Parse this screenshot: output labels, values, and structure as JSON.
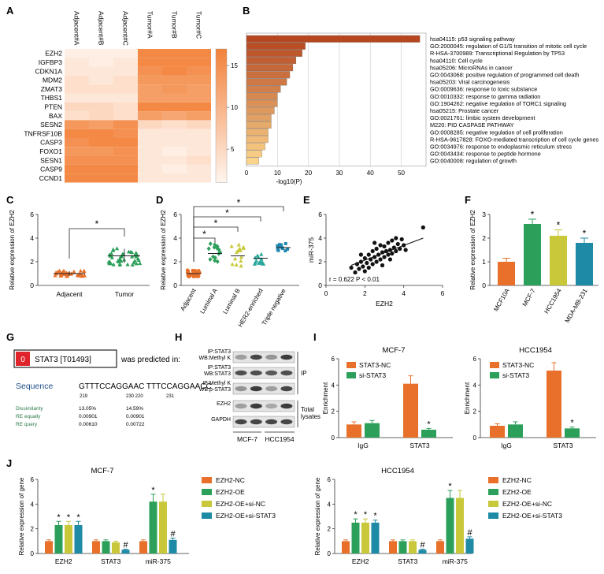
{
  "panels": {
    "A": {
      "label": "A",
      "columns": [
        "Adjacent#A",
        "Adjacent#B",
        "Adjacent#C",
        "Tumor#A",
        "Tumor#B",
        "Tumor#C"
      ],
      "rows": [
        "EZH2",
        "IGFBP3",
        "CDKN1A",
        "MDM2",
        "ZMAT3",
        "THBS1",
        "PTEN",
        "BAX",
        "SESN2",
        "TNFRSF10B",
        "CASP3",
        "FOXO1",
        "SESN1",
        "CASP9",
        "CCND1"
      ],
      "values": [
        [
          2,
          2,
          2,
          16,
          16,
          16
        ],
        [
          3,
          2,
          3,
          16,
          16,
          16
        ],
        [
          3,
          3,
          3,
          15,
          16,
          15
        ],
        [
          4,
          3,
          4,
          14,
          14,
          14
        ],
        [
          4,
          4,
          4,
          13,
          14,
          13
        ],
        [
          3,
          3,
          3,
          13,
          13,
          13
        ],
        [
          5,
          5,
          4,
          16,
          16,
          16
        ],
        [
          4,
          5,
          4,
          13,
          12,
          13
        ],
        [
          14,
          13,
          15,
          5,
          4,
          5
        ],
        [
          16,
          16,
          15,
          3,
          3,
          3
        ],
        [
          15,
          16,
          16,
          3,
          3,
          3
        ],
        [
          14,
          14,
          15,
          3,
          2,
          3
        ],
        [
          15,
          15,
          15,
          3,
          3,
          4
        ],
        [
          16,
          16,
          16,
          3,
          2,
          3
        ],
        [
          16,
          16,
          16,
          3,
          3,
          3
        ]
      ],
      "colorbar_ticks": [
        "15",
        "10",
        "5"
      ],
      "colors": {
        "low": "#fff5ee",
        "high": "#f2823a"
      }
    },
    "B": {
      "label": "B",
      "terms": [
        "hsa04115: p53 signaling pathway",
        "GO:2000045: regulation of G1/S transition of mitotic cell cycle",
        "R-HSA-3700989: Transcriptional Regulation by TP53",
        "hsa04110: Cell cycle",
        "hsa05206: MicroRNAs in cancer",
        "GO:0043068: positive regulation of programmed cell death",
        "hsa05203: Viral carcinogenesis",
        "GO:0009636: response to toxic substance",
        "GO:0010332: response to gamma radiation",
        "GO:1904262: negative regulation of TORC1 signaling",
        "hsa05215: Prostate cancer",
        "GO:0021761: limbic system development",
        "M220: PID CASPASE PATHWAY",
        "GO:0008285: negative regulation of cell proliferation",
        "R-HSA-9617828: FOXO-mediated transcription of cell cycle genes",
        "GO:0034976: response to endoplasmic reticulum stress",
        "GO:0043434: response to peptide hormone",
        "GO:0040008: regulation of growth"
      ],
      "values": [
        56,
        19,
        18,
        16,
        15,
        14,
        13,
        11,
        10,
        10,
        9,
        8,
        8,
        7,
        7,
        6,
        5,
        4
      ],
      "xticks": [
        "0",
        "10",
        "20",
        "30",
        "40",
        "50"
      ],
      "xlabel": "-log10(P)",
      "xmax": 58
    },
    "C": {
      "label": "C",
      "ylabel": "Relative expression of EZH2",
      "yticks": [
        "0",
        "2",
        "4",
        "6"
      ],
      "groups": [
        "Adjacent",
        "Tumor"
      ],
      "means": [
        1.0,
        2.5
      ],
      "sd": [
        0.2,
        0.6
      ],
      "star": "*",
      "colors": [
        "#e8702a",
        "#2ca05a"
      ]
    },
    "D": {
      "label": "D",
      "ylabel": "Relative expression of EZH2",
      "yticks": [
        "0",
        "2",
        "4",
        "6"
      ],
      "groups": [
        "Adjacent",
        "Luminal A",
        "Luminal B",
        "HER2-enriched",
        "Triple negative"
      ],
      "means": [
        1.0,
        2.7,
        2.5,
        2.3,
        3.2
      ],
      "sd": [
        0.25,
        0.8,
        0.8,
        0.5,
        0.3
      ],
      "star": "*",
      "colors": [
        "#e8702a",
        "#2ca05a",
        "#c8c83a",
        "#28a89a",
        "#2288b0"
      ]
    },
    "E": {
      "label": "E",
      "xlabel": "EZH2",
      "ylabel": "miR-375",
      "xticks": [
        "0",
        "2",
        "4",
        "6"
      ],
      "yticks": [
        "0",
        "2",
        "4",
        "6"
      ],
      "annotation": "r = 0.622  P < 0.01",
      "points": [
        [
          1.3,
          1.5
        ],
        [
          1.5,
          1.1
        ],
        [
          1.6,
          1.8
        ],
        [
          1.7,
          1.4
        ],
        [
          1.8,
          2.0
        ],
        [
          1.9,
          1.6
        ],
        [
          2.0,
          2.3
        ],
        [
          2.0,
          1.2
        ],
        [
          2.1,
          1.9
        ],
        [
          2.2,
          2.6
        ],
        [
          2.2,
          1.5
        ],
        [
          2.3,
          2.2
        ],
        [
          2.4,
          1.8
        ],
        [
          2.4,
          2.9
        ],
        [
          2.5,
          2.4
        ],
        [
          2.6,
          2.0
        ],
        [
          2.6,
          3.1
        ],
        [
          2.7,
          2.6
        ],
        [
          2.8,
          2.2
        ],
        [
          2.8,
          3.4
        ],
        [
          2.9,
          2.8
        ],
        [
          3.0,
          2.4
        ],
        [
          3.0,
          3.3
        ],
        [
          3.1,
          2.9
        ],
        [
          3.2,
          2.6
        ],
        [
          3.2,
          3.6
        ],
        [
          3.3,
          3.0
        ],
        [
          3.4,
          2.7
        ],
        [
          3.4,
          3.8
        ],
        [
          3.5,
          3.2
        ],
        [
          3.6,
          2.9
        ],
        [
          3.7,
          3.5
        ],
        [
          3.8,
          3.1
        ],
        [
          3.9,
          3.9
        ],
        [
          4.0,
          3.4
        ],
        [
          4.1,
          3.0
        ],
        [
          2.5,
          3.6
        ],
        [
          1.8,
          2.6
        ],
        [
          3.6,
          4.0
        ],
        [
          5.0,
          4.9
        ],
        [
          2.9,
          1.7
        ],
        [
          3.3,
          2.2
        ]
      ],
      "fit": [
        [
          1.3,
          1.7
        ],
        [
          5.0,
          4.0
        ]
      ]
    },
    "F": {
      "label": "F",
      "ylabel": "Relative expression of EZH2",
      "yticks": [
        "0",
        "1",
        "2",
        "3"
      ],
      "categories": [
        "MCF10A",
        "MCF-7",
        "HCC1954",
        "MDA-MB-231"
      ],
      "values": [
        1.0,
        2.6,
        2.1,
        1.8
      ],
      "err": [
        0.15,
        0.2,
        0.25,
        0.2
      ],
      "stars": [
        "",
        "*",
        "*",
        "*"
      ],
      "colors": [
        "#e8702a",
        "#2ca05a",
        "#c8c83a",
        "#1f8aa5"
      ]
    },
    "G": {
      "label": "G",
      "badge": "0",
      "factor": "STAT3 [T01493]",
      "predicted_text": "was predicted in:",
      "sequence_label": "Sequence",
      "sequence": "GTTTCCAGGAAC TTTCCAGGAACC",
      "positions": [
        "219",
        "230 220",
        "231"
      ],
      "rows": [
        {
          "name": "Dissimilarity",
          "v1": "13.05%",
          "v2": "14.59%"
        },
        {
          "name": "RE equally",
          "v1": "0.00901",
          "v2": "0.00901"
        },
        {
          "name": "RE query",
          "v1": "0.00610",
          "v2": "0.00722"
        }
      ]
    },
    "H": {
      "label": "H",
      "blots": [
        "IP:STAT3\nWB:Methyl K",
        "IP:STAT3\nWB:STAT3",
        "IP:Methyl K\nWB:p-STAT3",
        "EZH2",
        "GAPDH"
      ],
      "ip_label": "IP",
      "lysate_label": "Total\nlysates",
      "cells": [
        "MCF-7",
        "HCC1954"
      ]
    },
    "I": {
      "label": "I",
      "ylabel": "Enrichment",
      "legend": [
        "STAT3-NC",
        "si-STAT3"
      ],
      "colors": [
        "#e8702a",
        "#2ca05a"
      ],
      "charts": [
        {
          "title": "MCF-7",
          "yticks": [
            "0",
            "2",
            "4",
            "6"
          ],
          "ymax": 6,
          "categories": [
            "IgG",
            "STAT3"
          ],
          "values": [
            [
              1.0,
              1.1
            ],
            [
              4.1,
              0.6
            ]
          ],
          "err": [
            [
              0.2,
              0.2
            ],
            [
              0.6,
              0.1
            ]
          ],
          "stars": [
            [
              "",
              ""
            ],
            [
              "",
              "*"
            ]
          ]
        },
        {
          "title": "HCC1954",
          "yticks": [
            "0",
            "2",
            "4",
            "6"
          ],
          "ymax": 6,
          "categories": [
            "IgG",
            "STAT3"
          ],
          "values": [
            [
              0.9,
              1.0
            ],
            [
              5.1,
              0.7
            ]
          ],
          "err": [
            [
              0.15,
              0.2
            ],
            [
              0.6,
              0.1
            ]
          ],
          "stars": [
            [
              "",
              ""
            ],
            [
              "",
              "*"
            ]
          ]
        }
      ]
    },
    "J": {
      "label": "J",
      "ylabel": "Relative expression of gene",
      "legend": [
        "EZH2-NC",
        "EZH2-OE",
        "EZH2-OE+si-NC",
        "EZH2-OE+si-STAT3"
      ],
      "colors": [
        "#e8702a",
        "#2ca05a",
        "#c8c83a",
        "#1f8aa5"
      ],
      "charts": [
        {
          "title": "MCF-7",
          "yticks": [
            "0",
            "2",
            "4",
            "6"
          ],
          "ymax": 6,
          "categories": [
            "EZH2",
            "STAT3",
            "miR-375"
          ],
          "values": [
            [
              1.0,
              2.3,
              2.3,
              2.3
            ],
            [
              1.0,
              1.0,
              0.9,
              0.3
            ],
            [
              1.0,
              4.2,
              4.2,
              1.1
            ]
          ],
          "err": [
            [
              0.1,
              0.3,
              0.3,
              0.3
            ],
            [
              0.1,
              0.1,
              0.1,
              0.05
            ],
            [
              0.1,
              0.6,
              0.6,
              0.15
            ]
          ],
          "stars": [
            [
              "",
              "*",
              "*",
              "*"
            ],
            [
              "",
              "",
              "",
              "#"
            ],
            [
              "",
              "*",
              "",
              "#"
            ]
          ]
        },
        {
          "title": "HCC1954",
          "yticks": [
            "0",
            "2",
            "4",
            "6"
          ],
          "ymax": 6,
          "categories": [
            "EZH2",
            "STAT3",
            "miR-375"
          ],
          "values": [
            [
              1.0,
              2.5,
              2.5,
              2.5
            ],
            [
              1.0,
              1.0,
              1.0,
              0.3
            ],
            [
              1.0,
              4.5,
              4.5,
              1.2
            ]
          ],
          "err": [
            [
              0.1,
              0.3,
              0.3,
              0.2
            ],
            [
              0.1,
              0.1,
              0.1,
              0.05
            ],
            [
              0.1,
              0.6,
              0.6,
              0.15
            ]
          ],
          "stars": [
            [
              "",
              "*",
              "*",
              "*"
            ],
            [
              "",
              "",
              "",
              "#"
            ],
            [
              "",
              "*",
              "",
              "#"
            ]
          ]
        }
      ]
    }
  }
}
